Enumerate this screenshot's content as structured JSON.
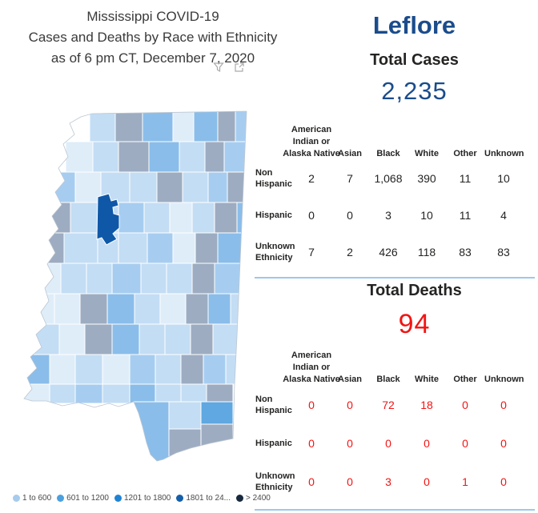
{
  "title": {
    "line1": "Mississippi COVID-19",
    "line2": "Cases and Deaths by Race with Ethnicity",
    "line3": "as of 6 pm CT, December 7, 2020"
  },
  "header": {
    "county": "Leflore"
  },
  "toolbar": {
    "icons": [
      "filter-icon",
      "focus-mode-icon"
    ]
  },
  "cases": {
    "label": "Total Cases",
    "value": "2,235",
    "columns": [
      {
        "label": "American Indian or Alaska Native",
        "lines": [
          "American",
          "Indian or",
          "Alaska Native"
        ]
      },
      {
        "label": "Asian",
        "lines": [
          "Asian"
        ]
      },
      {
        "label": "Black",
        "lines": [
          "Black"
        ]
      },
      {
        "label": "White",
        "lines": [
          "White"
        ]
      },
      {
        "label": "Other",
        "lines": [
          "Other"
        ]
      },
      {
        "label": "Unknown",
        "lines": [
          "Unknown"
        ]
      }
    ],
    "rows": [
      {
        "label": "Non Hispanic",
        "lines": [
          "Non",
          "Hispanic"
        ],
        "values": [
          "2",
          "7",
          "1,068",
          "390",
          "11",
          "10"
        ]
      },
      {
        "label": "Hispanic",
        "lines": [
          "Hispanic"
        ],
        "values": [
          "0",
          "0",
          "3",
          "10",
          "11",
          "4"
        ]
      },
      {
        "label": "Unknown Ethnicity",
        "lines": [
          "Unknown",
          "Ethnicity"
        ],
        "values": [
          "7",
          "2",
          "426",
          "118",
          "83",
          "83"
        ]
      }
    ]
  },
  "deaths": {
    "label": "Total Deaths",
    "value": "94",
    "columns": [
      {
        "label": "American Indian or Alaska Native",
        "lines": [
          "American",
          "Indian or",
          "Alaska Native"
        ]
      },
      {
        "label": "Asian",
        "lines": [
          "Asian"
        ]
      },
      {
        "label": "Black",
        "lines": [
          "Black"
        ]
      },
      {
        "label": "White",
        "lines": [
          "White"
        ]
      },
      {
        "label": "Other",
        "lines": [
          "Other"
        ]
      },
      {
        "label": "Unknown",
        "lines": [
          "Unknown"
        ]
      }
    ],
    "rows": [
      {
        "label": "Non Hispanic",
        "lines": [
          "Non",
          "Hispanic"
        ],
        "values": [
          "0",
          "0",
          "72",
          "18",
          "0",
          "0"
        ]
      },
      {
        "label": "Hispanic",
        "lines": [
          "Hispanic"
        ],
        "values": [
          "0",
          "0",
          "0",
          "0",
          "0",
          "0"
        ]
      },
      {
        "label": "Unknown Ethnicity",
        "lines": [
          "Unknown",
          "Ethnicity"
        ],
        "values": [
          "0",
          "0",
          "3",
          "0",
          "1",
          "0"
        ]
      }
    ]
  },
  "legend": {
    "items": [
      {
        "label": "1 to 600",
        "color": "#A6CBEC"
      },
      {
        "label": "601 to 1200",
        "color": "#4BA0DE"
      },
      {
        "label": "1201 to 1800",
        "color": "#1F83D4"
      },
      {
        "label": "1801 to 24...",
        "color": "#155FA8"
      },
      {
        "label": "> 2400",
        "color": "#16293E"
      }
    ]
  },
  "colors": {
    "navy": "#1b4c8c",
    "red": "#f21414",
    "divider": "#9cc9ec",
    "icon_gray": "#ababab"
  },
  "map": {
    "highlighted_county": "Leflore",
    "leflore_color": "#0F58A8",
    "palette": [
      "#DFEDF9",
      "#C3DDF4",
      "#A6CDF0",
      "#8ABDEA",
      "#5FA8E1",
      "#9DACC1"
    ],
    "counties": [
      [
        84,
        11,
        32,
        38,
        1
      ],
      [
        116,
        11,
        34,
        38,
        5
      ],
      [
        150,
        11,
        38,
        38,
        3
      ],
      [
        188,
        11,
        26,
        38,
        0
      ],
      [
        214,
        11,
        30,
        38,
        3
      ],
      [
        244,
        11,
        22,
        38,
        5
      ],
      [
        266,
        11,
        18,
        38,
        2
      ],
      [
        54,
        49,
        34,
        38,
        0
      ],
      [
        88,
        49,
        32,
        38,
        1
      ],
      [
        120,
        49,
        38,
        38,
        5
      ],
      [
        158,
        49,
        38,
        38,
        3
      ],
      [
        196,
        49,
        32,
        38,
        1
      ],
      [
        228,
        49,
        24,
        38,
        5
      ],
      [
        252,
        49,
        32,
        38,
        2
      ],
      [
        32,
        87,
        34,
        38,
        2
      ],
      [
        66,
        87,
        32,
        38,
        0
      ],
      [
        98,
        87,
        36,
        38,
        1
      ],
      [
        134,
        87,
        34,
        38,
        1
      ],
      [
        168,
        87,
        32,
        38,
        5
      ],
      [
        200,
        87,
        32,
        38,
        1
      ],
      [
        232,
        87,
        24,
        38,
        2
      ],
      [
        256,
        87,
        28,
        38,
        5
      ],
      [
        26,
        125,
        34,
        38,
        5
      ],
      [
        60,
        125,
        34,
        38,
        1
      ],
      [
        94,
        125,
        26,
        38,
        1
      ],
      [
        120,
        125,
        32,
        38,
        2
      ],
      [
        152,
        125,
        32,
        38,
        1
      ],
      [
        184,
        125,
        28,
        38,
        0
      ],
      [
        212,
        125,
        28,
        38,
        1
      ],
      [
        240,
        125,
        28,
        38,
        5
      ],
      [
        268,
        125,
        16,
        38,
        3
      ],
      [
        18,
        163,
        34,
        38,
        5
      ],
      [
        52,
        163,
        42,
        38,
        1
      ],
      [
        94,
        163,
        26,
        38,
        1
      ],
      [
        120,
        163,
        36,
        38,
        1
      ],
      [
        156,
        163,
        32,
        38,
        2
      ],
      [
        188,
        163,
        28,
        38,
        0
      ],
      [
        216,
        163,
        28,
        38,
        5
      ],
      [
        244,
        163,
        40,
        38,
        3
      ],
      [
        12,
        201,
        36,
        38,
        0
      ],
      [
        48,
        201,
        32,
        38,
        1
      ],
      [
        80,
        201,
        32,
        38,
        1
      ],
      [
        112,
        201,
        36,
        38,
        2
      ],
      [
        148,
        201,
        32,
        38,
        1
      ],
      [
        180,
        201,
        32,
        38,
        1
      ],
      [
        212,
        201,
        28,
        38,
        5
      ],
      [
        240,
        201,
        44,
        38,
        2
      ],
      [
        6,
        239,
        34,
        38,
        0
      ],
      [
        40,
        239,
        32,
        38,
        0
      ],
      [
        72,
        239,
        34,
        38,
        5
      ],
      [
        106,
        239,
        34,
        38,
        3
      ],
      [
        140,
        239,
        32,
        38,
        1
      ],
      [
        172,
        239,
        32,
        38,
        0
      ],
      [
        204,
        239,
        28,
        38,
        5
      ],
      [
        232,
        239,
        28,
        38,
        3
      ],
      [
        260,
        239,
        24,
        38,
        1
      ],
      [
        10,
        277,
        36,
        38,
        1
      ],
      [
        46,
        277,
        32,
        38,
        0
      ],
      [
        78,
        277,
        34,
        38,
        5
      ],
      [
        112,
        277,
        34,
        38,
        3
      ],
      [
        146,
        277,
        32,
        38,
        1
      ],
      [
        178,
        277,
        32,
        38,
        1
      ],
      [
        210,
        277,
        28,
        38,
        5
      ],
      [
        238,
        277,
        46,
        38,
        1
      ],
      [
        0,
        315,
        34,
        37,
        3
      ],
      [
        34,
        315,
        32,
        37,
        0
      ],
      [
        66,
        315,
        34,
        37,
        1
      ],
      [
        100,
        315,
        34,
        37,
        0
      ],
      [
        134,
        315,
        32,
        37,
        2
      ],
      [
        166,
        315,
        32,
        37,
        1
      ],
      [
        198,
        315,
        28,
        37,
        5
      ],
      [
        226,
        315,
        28,
        37,
        2
      ],
      [
        254,
        315,
        30,
        37,
        1
      ],
      [
        0,
        352,
        34,
        24,
        0
      ],
      [
        34,
        352,
        32,
        24,
        1
      ],
      [
        66,
        352,
        34,
        24,
        2
      ],
      [
        100,
        352,
        34,
        24,
        1
      ],
      [
        134,
        352,
        32,
        24,
        3
      ],
      [
        166,
        352,
        32,
        24,
        1
      ],
      [
        198,
        352,
        32,
        24,
        1
      ],
      [
        230,
        352,
        33,
        24,
        5
      ],
      [
        139,
        374,
        44,
        76,
        3
      ],
      [
        183,
        374,
        40,
        34,
        1
      ],
      [
        183,
        408,
        40,
        42,
        5
      ],
      [
        223,
        374,
        40,
        28,
        4
      ],
      [
        223,
        402,
        40,
        48,
        5
      ]
    ]
  },
  "chart_data": [
    {
      "type": "table",
      "title": "Leflore Total Cases by Race with Ethnicity",
      "columns": [
        "Ethnicity",
        "American Indian or Alaska Native",
        "Asian",
        "Black",
        "White",
        "Other",
        "Unknown"
      ],
      "rows": [
        [
          "Non Hispanic",
          2,
          7,
          1068,
          390,
          11,
          10
        ],
        [
          "Hispanic",
          0,
          0,
          3,
          10,
          11,
          4
        ],
        [
          "Unknown Ethnicity",
          7,
          2,
          426,
          118,
          83,
          83
        ]
      ],
      "kpi": {
        "label": "Total Cases",
        "value": 2235
      }
    },
    {
      "type": "table",
      "title": "Leflore Total Deaths by Race with Ethnicity",
      "columns": [
        "Ethnicity",
        "American Indian or Alaska Native",
        "Asian",
        "Black",
        "White",
        "Other",
        "Unknown"
      ],
      "rows": [
        [
          "Non Hispanic",
          0,
          0,
          72,
          18,
          0,
          0
        ],
        [
          "Hispanic",
          0,
          0,
          0,
          0,
          0,
          0
        ],
        [
          "Unknown Ethnicity",
          0,
          0,
          3,
          0,
          1,
          0
        ]
      ],
      "kpi": {
        "label": "Total Deaths",
        "value": 94
      }
    },
    {
      "type": "heatmap",
      "title": "Mississippi choropleth map of COVID-19 cases by county",
      "legend_position": "bottom-left",
      "legend_buckets": [
        "1 to 600",
        "601 to 1200",
        "1201 to 1800",
        "1801 to 24...",
        "> 2400"
      ],
      "highlighted_county": "Leflore"
    }
  ]
}
